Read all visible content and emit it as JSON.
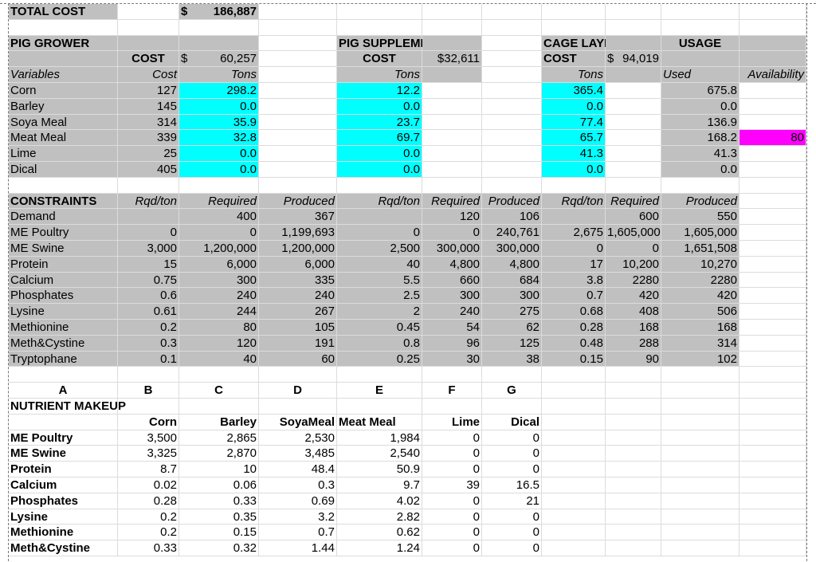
{
  "sheet": {
    "rows": [
      [
        "TOTAL COST",
        null,
        "$ 186,887"
      ],
      [],
      [
        "PIG GROWER",
        null,
        null,
        null,
        "PIG SUPPLEMENT",
        null,
        null,
        "CAGE LAYER",
        null,
        "USAGE"
      ],
      [
        null,
        "COST",
        "$ 60,257",
        null,
        "COST",
        "$32,611",
        null,
        "COST",
        "$ 94,019"
      ],
      [
        "Variables",
        "Cost",
        "Tons",
        null,
        "Tons",
        null,
        null,
        "Tons",
        null,
        "Used",
        "Availability"
      ],
      [
        "Corn",
        "127",
        "298.2",
        null,
        "12.2",
        null,
        null,
        "365.4",
        null,
        "675.8"
      ],
      [
        "Barley",
        "145",
        "0.0",
        null,
        "0.0",
        null,
        null,
        "0.0",
        null,
        "0.0"
      ],
      [
        "Soya Meal",
        "314",
        "35.9",
        null,
        "23.7",
        null,
        null,
        "77.4",
        null,
        "136.9"
      ],
      [
        "Meat Meal",
        "339",
        "32.8",
        null,
        "69.7",
        null,
        null,
        "65.7",
        null,
        "168.2",
        "80"
      ],
      [
        "Lime",
        "25",
        "0.0",
        null,
        "0.0",
        null,
        null,
        "41.3",
        null,
        "41.3"
      ],
      [
        "Dical",
        "405",
        "0.0",
        null,
        "0.0",
        null,
        null,
        "0.0",
        null,
        "0.0"
      ],
      [],
      [
        "CONSTRAINTS",
        "Rqd/ton",
        "Required",
        "Produced",
        "Rqd/ton",
        "Required",
        "Produced",
        "Rqd/ton",
        "Required",
        "Produced"
      ],
      [
        "Demand",
        null,
        "400",
        "367",
        null,
        "120",
        "106",
        null,
        "600",
        "550"
      ],
      [
        "ME Poultry",
        "0",
        "0",
        "1,199,693",
        "0",
        "0",
        "240,761",
        "2,675",
        "1,605,000",
        "1,605,000"
      ],
      [
        "ME Swine",
        "3,000",
        "1,200,000",
        "1,200,000",
        "2,500",
        "300,000",
        "300,000",
        "0",
        "0",
        "1,651,508"
      ],
      [
        "Protein",
        "15",
        "6,000",
        "6,000",
        "40",
        "4,800",
        "4,800",
        "17",
        "10,200",
        "10,270"
      ],
      [
        "Calcium",
        "0.75",
        "300",
        "335",
        "5.5",
        "660",
        "684",
        "3.8",
        "2280",
        "2280"
      ],
      [
        "Phosphates",
        "0.6",
        "240",
        "240",
        "2.5",
        "300",
        "300",
        "0.7",
        "420",
        "420"
      ],
      [
        "Lysine",
        "0.61",
        "244",
        "267",
        "2",
        "240",
        "275",
        "0.68",
        "408",
        "506"
      ],
      [
        "Methionine",
        "0.2",
        "80",
        "105",
        "0.45",
        "54",
        "62",
        "0.28",
        "168",
        "168"
      ],
      [
        "Meth&Cystine",
        "0.3",
        "120",
        "191",
        "0.8",
        "96",
        "125",
        "0.48",
        "288",
        "314"
      ],
      [
        "Tryptophane",
        "0.1",
        "40",
        "60",
        "0.25",
        "30",
        "38",
        "0.15",
        "90",
        "102"
      ],
      [],
      [
        "A",
        "B",
        "C",
        "D",
        "E",
        "F",
        "G"
      ],
      [
        "NUTRIENT MAKEUP"
      ],
      [
        null,
        "Corn",
        "Barley",
        "SoyaMeal",
        "Meat Meal",
        "Lime",
        "Dical"
      ],
      [
        "ME Poultry",
        "3,500",
        "2,865",
        "2,530",
        "1,984",
        "0",
        "0"
      ],
      [
        "ME Swine",
        "3,325",
        "2,870",
        "3,485",
        "2,540",
        "0",
        "0"
      ],
      [
        "Protein",
        "8.7",
        "10",
        "48.4",
        "50.9",
        "0",
        "0"
      ],
      [
        "Calcium",
        "0.02",
        "0.06",
        "0.3",
        "9.7",
        "39",
        "16.5"
      ],
      [
        "Phosphates",
        "0.28",
        "0.33",
        "0.69",
        "4.02",
        "0",
        "21"
      ],
      [
        "Lysine",
        "0.2",
        "0.35",
        "3.2",
        "2.82",
        "0",
        "0"
      ],
      [
        "Methionine",
        "0.2",
        "0.15",
        "0.7",
        "0.62",
        "0",
        "0"
      ],
      [
        "Meth&Cystine",
        "0.33",
        "0.32",
        "1.44",
        "1.24",
        "0",
        "0"
      ]
    ]
  }
}
